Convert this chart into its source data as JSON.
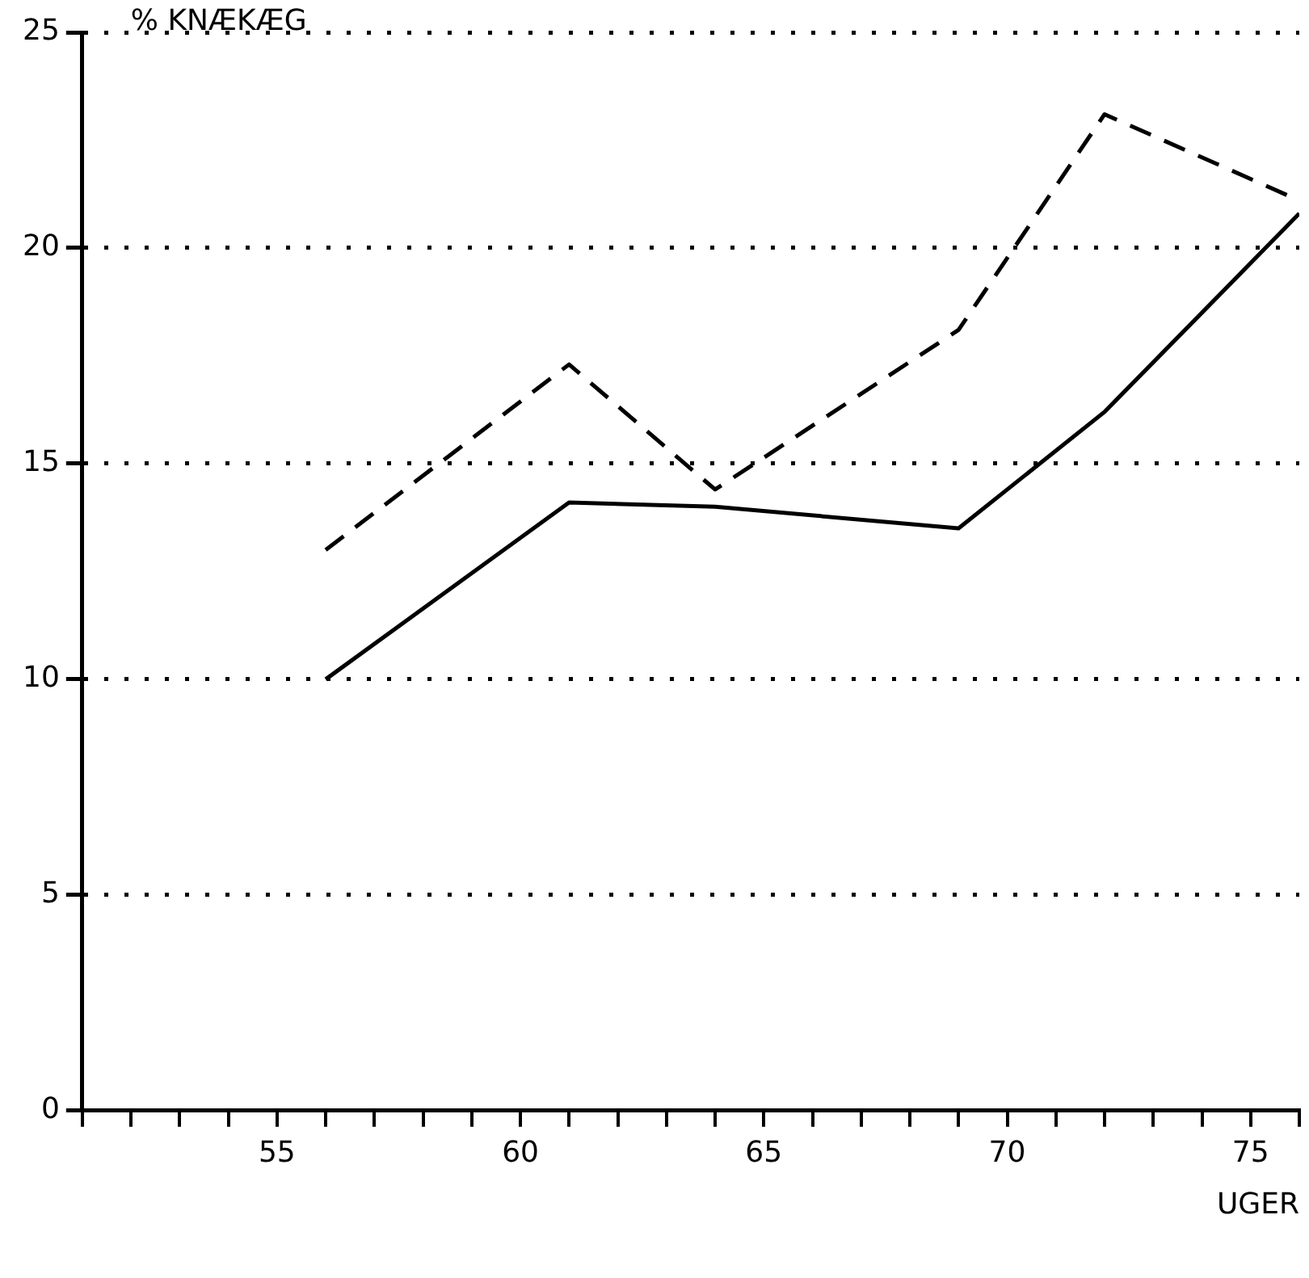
{
  "chart_data": {
    "type": "line",
    "ylabel": "% KNÆKÆG",
    "xlabel": "UGER",
    "x": [
      56,
      61,
      64,
      69,
      72,
      76
    ],
    "series": [
      {
        "color": "#000000",
        "line_style": "solid",
        "values": [
          10,
          14.1,
          14.0,
          13.5,
          16.2,
          20.8
        ]
      },
      {
        "color": "#000000",
        "line_style": "dashed",
        "values": [
          13.0,
          17.3,
          14.4,
          18.1,
          23.1,
          21.1
        ]
      }
    ],
    "xlim": [
      51,
      76
    ],
    "xticks": [
      {
        "value": 51,
        "label": null
      },
      {
        "value": 52,
        "label": null
      },
      {
        "value": 53,
        "label": null
      },
      {
        "value": 54,
        "label": null
      },
      55,
      {
        "value": 56,
        "label": null
      },
      {
        "value": 57,
        "label": null
      },
      {
        "value": 58,
        "label": null
      },
      {
        "value": 59,
        "label": null
      },
      60,
      {
        "value": 61,
        "label": null
      },
      {
        "value": 62,
        "label": null
      },
      {
        "value": 63,
        "label": null
      },
      {
        "value": 64,
        "label": null
      },
      65,
      {
        "value": 66,
        "label": null
      },
      {
        "value": 67,
        "label": null
      },
      {
        "value": 68,
        "label": null
      },
      {
        "value": 69,
        "label": null
      },
      70,
      {
        "value": 71,
        "label": null
      },
      {
        "value": 72,
        "label": null
      },
      {
        "value": 73,
        "label": null
      },
      {
        "value": 74,
        "label": null
      },
      75,
      {
        "value": 76,
        "label": null
      }
    ],
    "ylim": [
      0,
      25
    ],
    "yticks": [
      0,
      5,
      10,
      15,
      20,
      25
    ],
    "grid": "y",
    "legend": false,
    "marker": "none"
  }
}
